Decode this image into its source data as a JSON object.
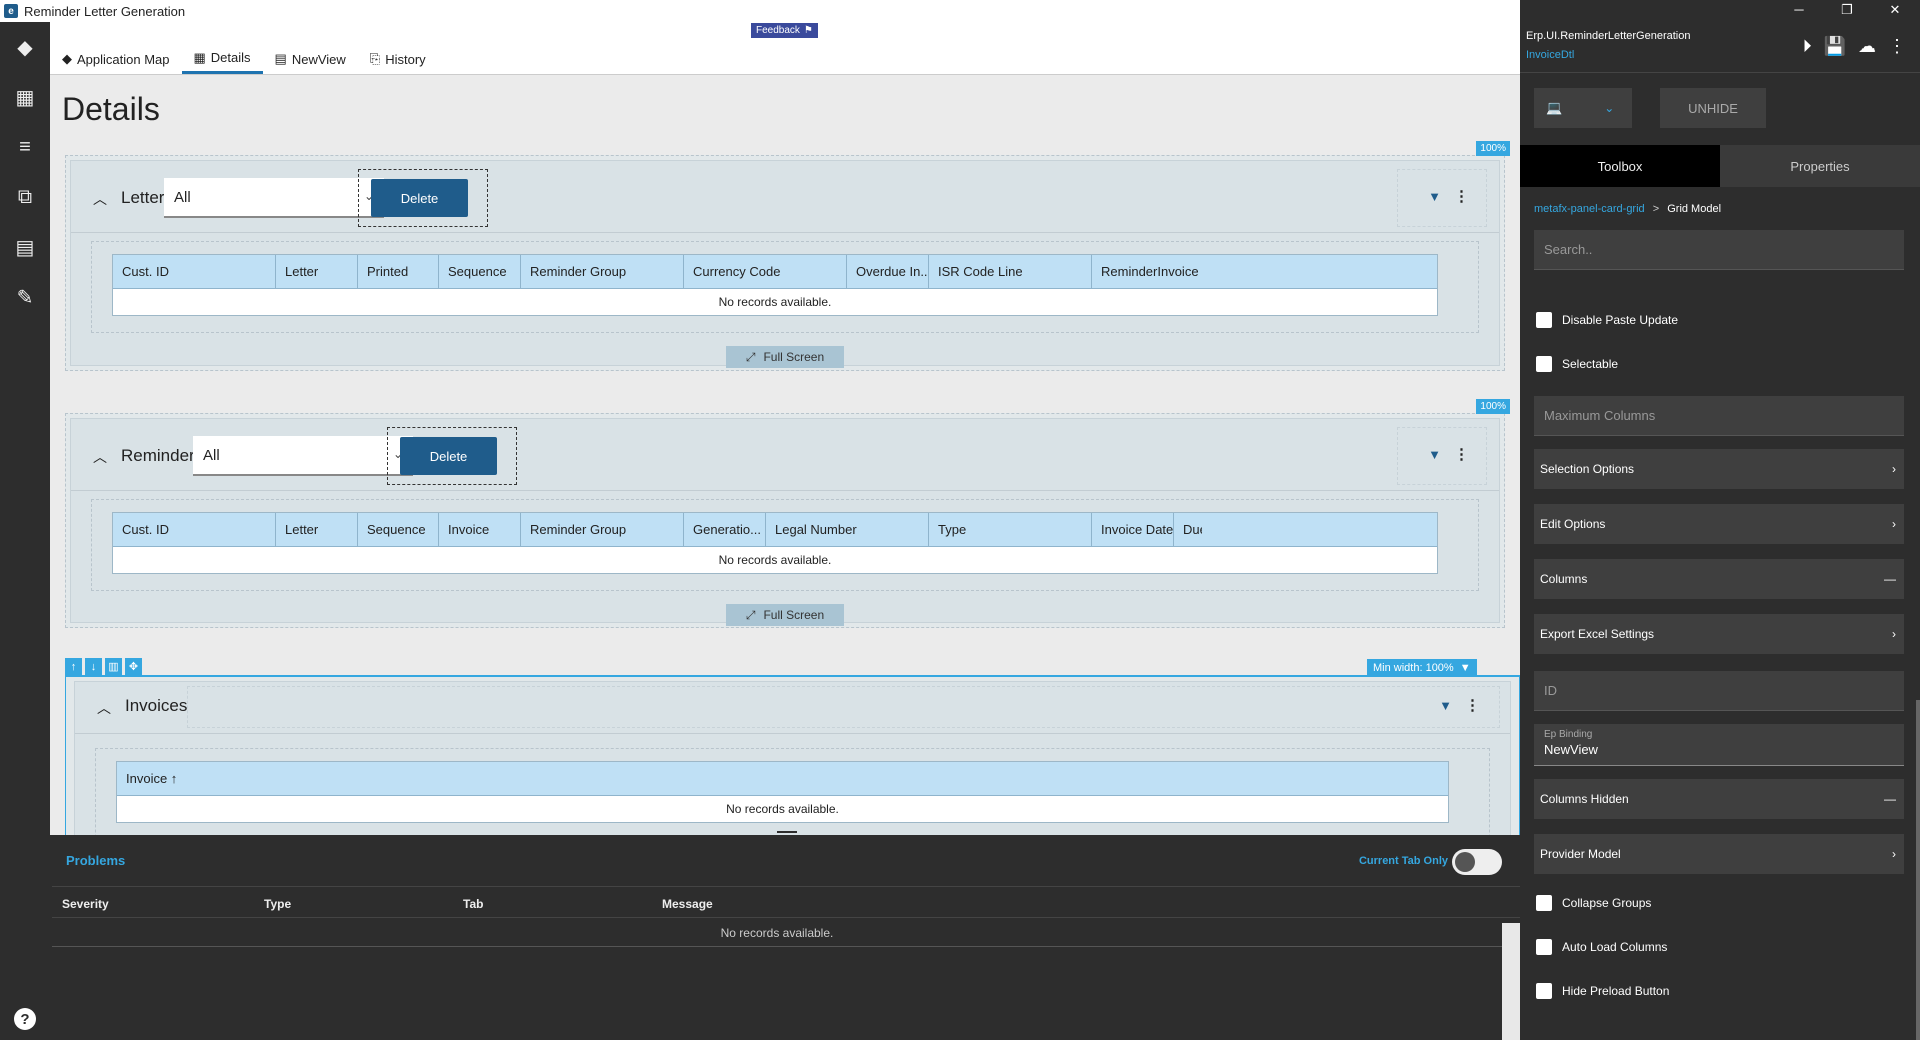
{
  "window": {
    "title": "Reminder Letter Generation",
    "feedback_label": "Feedback",
    "controls": {
      "minimize": "─",
      "restore": "❐",
      "close": "✕"
    }
  },
  "sidebar": {
    "items": [
      {
        "name": "layers-icon",
        "glyph": "◆"
      },
      {
        "name": "layout-icon",
        "glyph": "▦"
      },
      {
        "name": "list-edit-icon",
        "glyph": "≡"
      },
      {
        "name": "hierarchy-icon",
        "glyph": "⧉"
      },
      {
        "name": "table-icon",
        "glyph": "▤"
      },
      {
        "name": "document-edit-icon",
        "glyph": "✎"
      }
    ],
    "help": "?"
  },
  "tabs": [
    {
      "label": "Application Map",
      "icon": "◆",
      "active": false
    },
    {
      "label": "Details",
      "icon": "▦",
      "active": true
    },
    {
      "label": "NewView",
      "icon": "▤",
      "active": false
    },
    {
      "label": "History",
      "icon": "⎘",
      "active": false
    }
  ],
  "page": {
    "title": "Details"
  },
  "sections": {
    "letters": {
      "badge": "100%",
      "title": "Letters",
      "filter_value": "All",
      "delete_label": "Delete",
      "columns": [
        "Cust. ID",
        "Letter",
        "Printed",
        "Sequence",
        "Reminder Group",
        "Currency Code",
        "Overdue In...",
        "ISR Code Line",
        "ReminderInvoice"
      ],
      "empty_text": "No records available.",
      "fullscreen_label": "Full Screen"
    },
    "reminders": {
      "badge": "100%",
      "title": "Reminders",
      "filter_value": "All",
      "delete_label": "Delete",
      "columns": [
        "Cust. ID",
        "Letter",
        "Sequence",
        "Invoice",
        "Reminder Group",
        "Generatio...",
        "Legal Number",
        "Type",
        "Invoice Date",
        "Due"
      ],
      "empty_text": "No records available.",
      "fullscreen_label": "Full Screen"
    },
    "invoices": {
      "min_width_label": "Min width: 100%",
      "title": "Invoices",
      "columns": [
        "Invoice ↑"
      ],
      "empty_text": "No records available."
    }
  },
  "problems": {
    "title": "Problems",
    "toggle_label": "Current Tab Only",
    "columns": [
      "Severity",
      "Type",
      "Tab",
      "Message"
    ],
    "empty_text": "No records available."
  },
  "properties": {
    "title": "Erp.UI.ReminderLetterGeneration",
    "subtitle": "InvoiceDtl",
    "unhide_label": "UNHIDE",
    "tabs": [
      "Toolbox",
      "Properties"
    ],
    "breadcrumb": {
      "link": "metafx-panel-card-grid",
      "separator": ">",
      "current": "Grid Model"
    },
    "search_placeholder": "Search..",
    "checkbox_1": "Disable Paste Update",
    "checkbox_2": "Selectable",
    "max_columns_placeholder": "Maximum Columns",
    "selection_options": "Selection Options",
    "edit_options": "Edit Options",
    "columns_label": "Columns",
    "export_excel": "Export Excel Settings",
    "id_placeholder": "ID",
    "ep_binding_label": "Ep Binding",
    "ep_binding_value": "NewView",
    "columns_hidden": "Columns Hidden",
    "provider_model": "Provider Model",
    "checkbox_3": "Collapse Groups",
    "checkbox_4": "Auto Load Columns",
    "checkbox_5": "Hide Preload Button",
    "chevron": "›",
    "dash": "—"
  }
}
